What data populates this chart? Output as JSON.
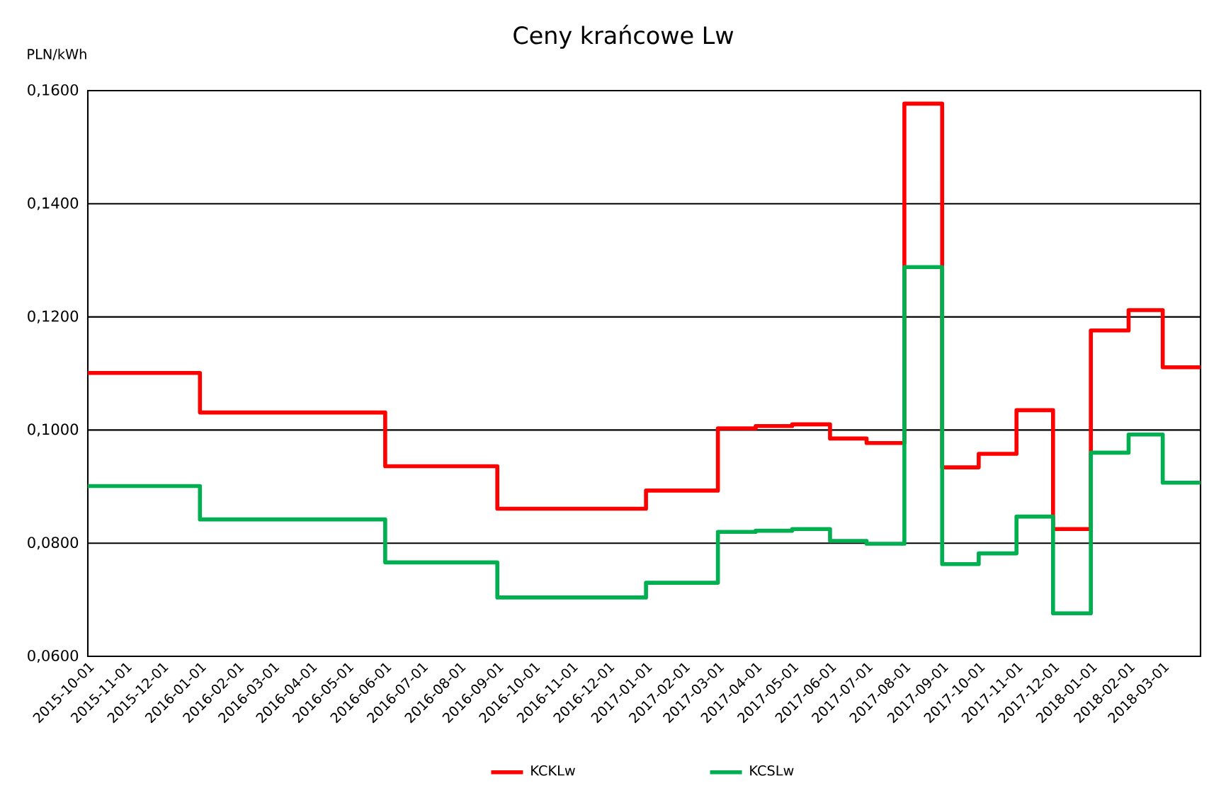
{
  "chart_data": {
    "type": "step",
    "title": "Ceny krańcowe Lw",
    "ylabel": "PLN/kWh",
    "x": [
      "2015-10-01",
      "2015-11-01",
      "2015-12-01",
      "2016-01-01",
      "2016-02-01",
      "2016-03-01",
      "2016-04-01",
      "2016-05-01",
      "2016-06-01",
      "2016-07-01",
      "2016-08-01",
      "2016-09-01",
      "2016-10-01",
      "2016-11-01",
      "2016-12-01",
      "2017-01-01",
      "2017-02-01",
      "2017-03-01",
      "2017-04-01",
      "2017-05-01",
      "2017-06-01",
      "2017-07-01",
      "2017-08-01",
      "2017-09-01",
      "2017-10-01",
      "2017-11-01",
      "2017-12-01",
      "2018-01-01",
      "2018-02-01",
      "2018-03-01",
      "2018-04-01"
    ],
    "series": [
      {
        "name": "KCKLw",
        "color": "#ff0000",
        "values": [
          0.1101,
          0.1101,
          0.1101,
          0.1031,
          0.1031,
          0.1031,
          0.1031,
          0.1031,
          0.0936,
          0.0936,
          0.0936,
          0.0861,
          0.0861,
          0.0861,
          0.0861,
          0.0893,
          0.0893,
          0.1003,
          0.1007,
          0.101,
          0.0985,
          0.0977,
          0.1577,
          0.0934,
          0.0958,
          0.1035,
          0.0825,
          0.1176,
          0.1212,
          0.1111,
          0.1111
        ]
      },
      {
        "name": "KCSLw",
        "color": "#00b050",
        "values": [
          0.0901,
          0.0901,
          0.0901,
          0.0842,
          0.0842,
          0.0842,
          0.0842,
          0.0842,
          0.0766,
          0.0766,
          0.0766,
          0.0704,
          0.0704,
          0.0704,
          0.0704,
          0.073,
          0.073,
          0.082,
          0.0822,
          0.0825,
          0.0804,
          0.0799,
          0.1288,
          0.0763,
          0.0782,
          0.0847,
          0.0676,
          0.096,
          0.0992,
          0.0907,
          0.0907
        ]
      }
    ],
    "xlim": [
      "2015-10-01",
      "2018-04-01"
    ],
    "xticks": [
      "2015-10-01",
      "2015-11-01",
      "2015-12-01",
      "2016-01-01",
      "2016-02-01",
      "2016-03-01",
      "2016-04-01",
      "2016-05-01",
      "2016-06-01",
      "2016-07-01",
      "2016-08-01",
      "2016-09-01",
      "2016-10-01",
      "2016-11-01",
      "2016-12-01",
      "2017-01-01",
      "2017-02-01",
      "2017-03-01",
      "2017-04-01",
      "2017-05-01",
      "2017-06-01",
      "2017-07-01",
      "2017-08-01",
      "2017-09-01",
      "2017-10-01",
      "2017-11-01",
      "2017-12-01",
      "2018-01-01",
      "2018-02-01",
      "2018-03-01"
    ],
    "ylim": [
      0.06,
      0.16
    ],
    "yticks": [
      {
        "value": 0.06,
        "label": "0,0600"
      },
      {
        "value": 0.08,
        "label": "0,0800"
      },
      {
        "value": 0.1,
        "label": "0,1000"
      },
      {
        "value": 0.12,
        "label": "0,1200"
      },
      {
        "value": 0.14,
        "label": "0,1400"
      },
      {
        "value": 0.16,
        "label": "0,1600"
      }
    ],
    "grid": "y",
    "legend": "bottom",
    "line_style": "solid",
    "marker": "none"
  }
}
